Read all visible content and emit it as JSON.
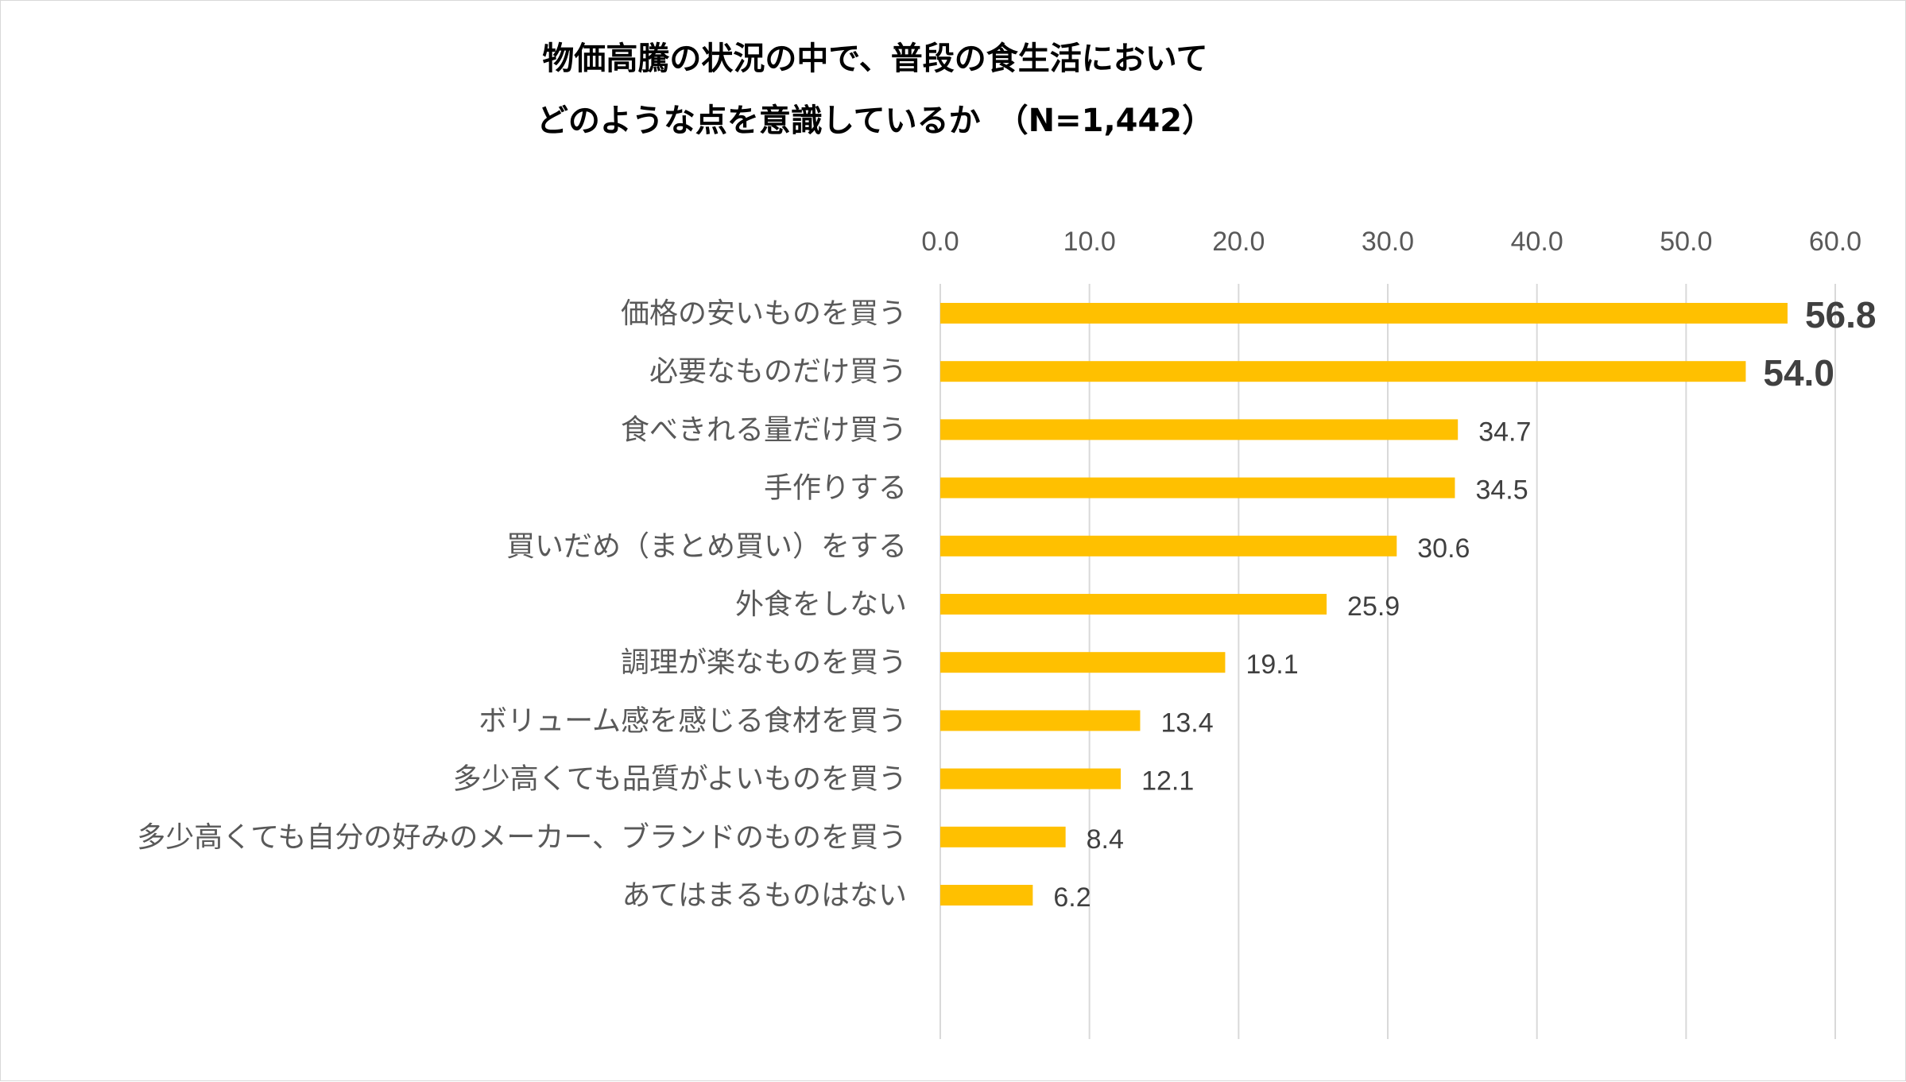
{
  "chart_data": {
    "type": "bar",
    "orientation": "horizontal",
    "title_lines": [
      "物価高騰の状況の中で、普段の食生活において",
      "どのような点を意識しているか　（N=1,442）"
    ],
    "categories": [
      "価格の安いものを買う",
      "必要なものだけ買う",
      "食べきれる量だけ買う",
      "手作りする",
      "買いだめ（まとめ買い）をする",
      "外食をしない",
      "調理が楽なものを買う",
      "ボリューム感を感じる食材を買う",
      "多少高くても品質がよいものを買う",
      "多少高くても自分の好みのメーカー、ブランドのものを買う",
      "あてはまるものはない"
    ],
    "values": [
      56.8,
      54.0,
      34.7,
      34.5,
      30.6,
      25.9,
      19.1,
      13.4,
      12.1,
      8.4,
      6.2
    ],
    "value_labels": [
      "56.8",
      "54.0",
      "34.7",
      "34.5",
      "30.6",
      "25.9",
      "19.1",
      "13.4",
      "12.1",
      "8.4",
      "6.2"
    ],
    "emphasized_count": 2,
    "xlim": [
      0,
      60
    ],
    "ticks": [
      0,
      10,
      20,
      30,
      40,
      50,
      60
    ],
    "tick_labels": [
      "0.0",
      "10.0",
      "20.0",
      "30.0",
      "40.0",
      "50.0",
      "60.0"
    ],
    "axis_position": "top",
    "grid": true,
    "legend": "none",
    "xlabel": "",
    "ylabel": "",
    "colors": {
      "bar": "#ffc000",
      "grid": "#d9d9d9",
      "tick_text": "#595959",
      "category_text": "#595959",
      "value_text": "#404040",
      "title_text": "#000000"
    }
  }
}
